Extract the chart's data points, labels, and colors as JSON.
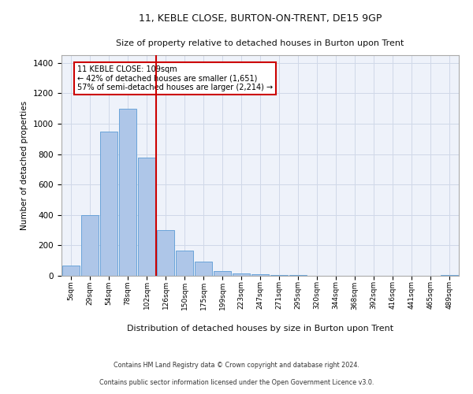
{
  "title1": "11, KEBLE CLOSE, BURTON-ON-TRENT, DE15 9GP",
  "title2": "Size of property relative to detached houses in Burton upon Trent",
  "xlabel": "Distribution of detached houses by size in Burton upon Trent",
  "ylabel": "Number of detached properties",
  "footnote1": "Contains HM Land Registry data © Crown copyright and database right 2024.",
  "footnote2": "Contains public sector information licensed under the Open Government Licence v3.0.",
  "bar_labels": [
    "5sqm",
    "29sqm",
    "54sqm",
    "78sqm",
    "102sqm",
    "126sqm",
    "150sqm",
    "175sqm",
    "199sqm",
    "223sqm",
    "247sqm",
    "271sqm",
    "295sqm",
    "320sqm",
    "344sqm",
    "368sqm",
    "392sqm",
    "416sqm",
    "441sqm",
    "465sqm",
    "489sqm"
  ],
  "bar_values": [
    65,
    400,
    950,
    1100,
    775,
    300,
    165,
    95,
    30,
    15,
    10,
    5,
    3,
    2,
    1,
    1,
    0,
    0,
    0,
    0,
    5
  ],
  "bar_color": "#aec6e8",
  "bar_edgecolor": "#5b9bd5",
  "grid_color": "#d0d8e8",
  "background_color": "#eef2fa",
  "vline_color": "#cc0000",
  "vline_x_index": 4,
  "annotation_text": "11 KEBLE CLOSE: 109sqm\n← 42% of detached houses are smaller (1,651)\n57% of semi-detached houses are larger (2,214) →",
  "annotation_box_color": "#ffffff",
  "annotation_border_color": "#cc0000",
  "ylim": [
    0,
    1450
  ],
  "yticks": [
    0,
    200,
    400,
    600,
    800,
    1000,
    1200,
    1400
  ]
}
